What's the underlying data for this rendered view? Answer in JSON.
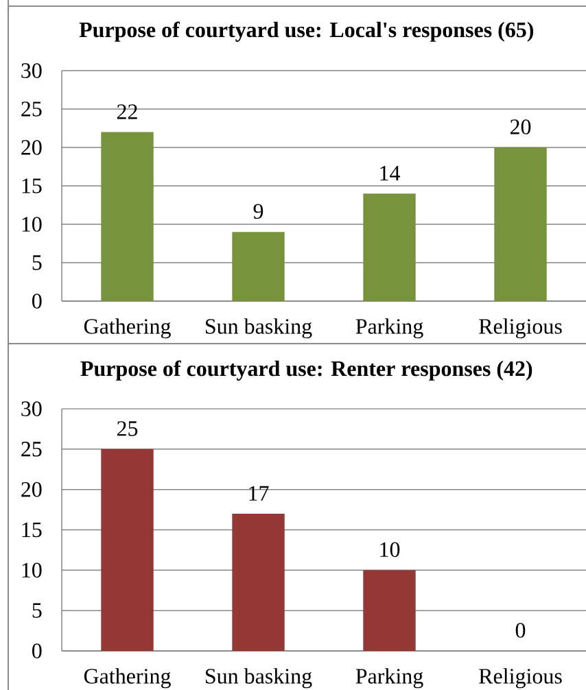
{
  "chart_data": [
    {
      "type": "bar",
      "title": "Purpose of courtyard use: Local's responses (65)",
      "categories": [
        "Gathering",
        "Sun basking",
        "Parking",
        "Religious"
      ],
      "values": [
        22,
        9,
        14,
        20
      ],
      "color": "#77933c",
      "ylim": [
        0,
        30
      ],
      "yticks": [
        0,
        5,
        10,
        15,
        20,
        25,
        30
      ],
      "grid": "y",
      "data_labels": true
    },
    {
      "type": "bar",
      "title": "Purpose of courtyard use: Renter responses (42)",
      "categories": [
        "Gathering",
        "Sun basking",
        "Parking",
        "Religious"
      ],
      "values": [
        25,
        17,
        10,
        0
      ],
      "color": "#953735",
      "ylim": [
        0,
        30
      ],
      "yticks": [
        0,
        5,
        10,
        15,
        20,
        25,
        30
      ],
      "grid": "y",
      "data_labels": true
    }
  ]
}
